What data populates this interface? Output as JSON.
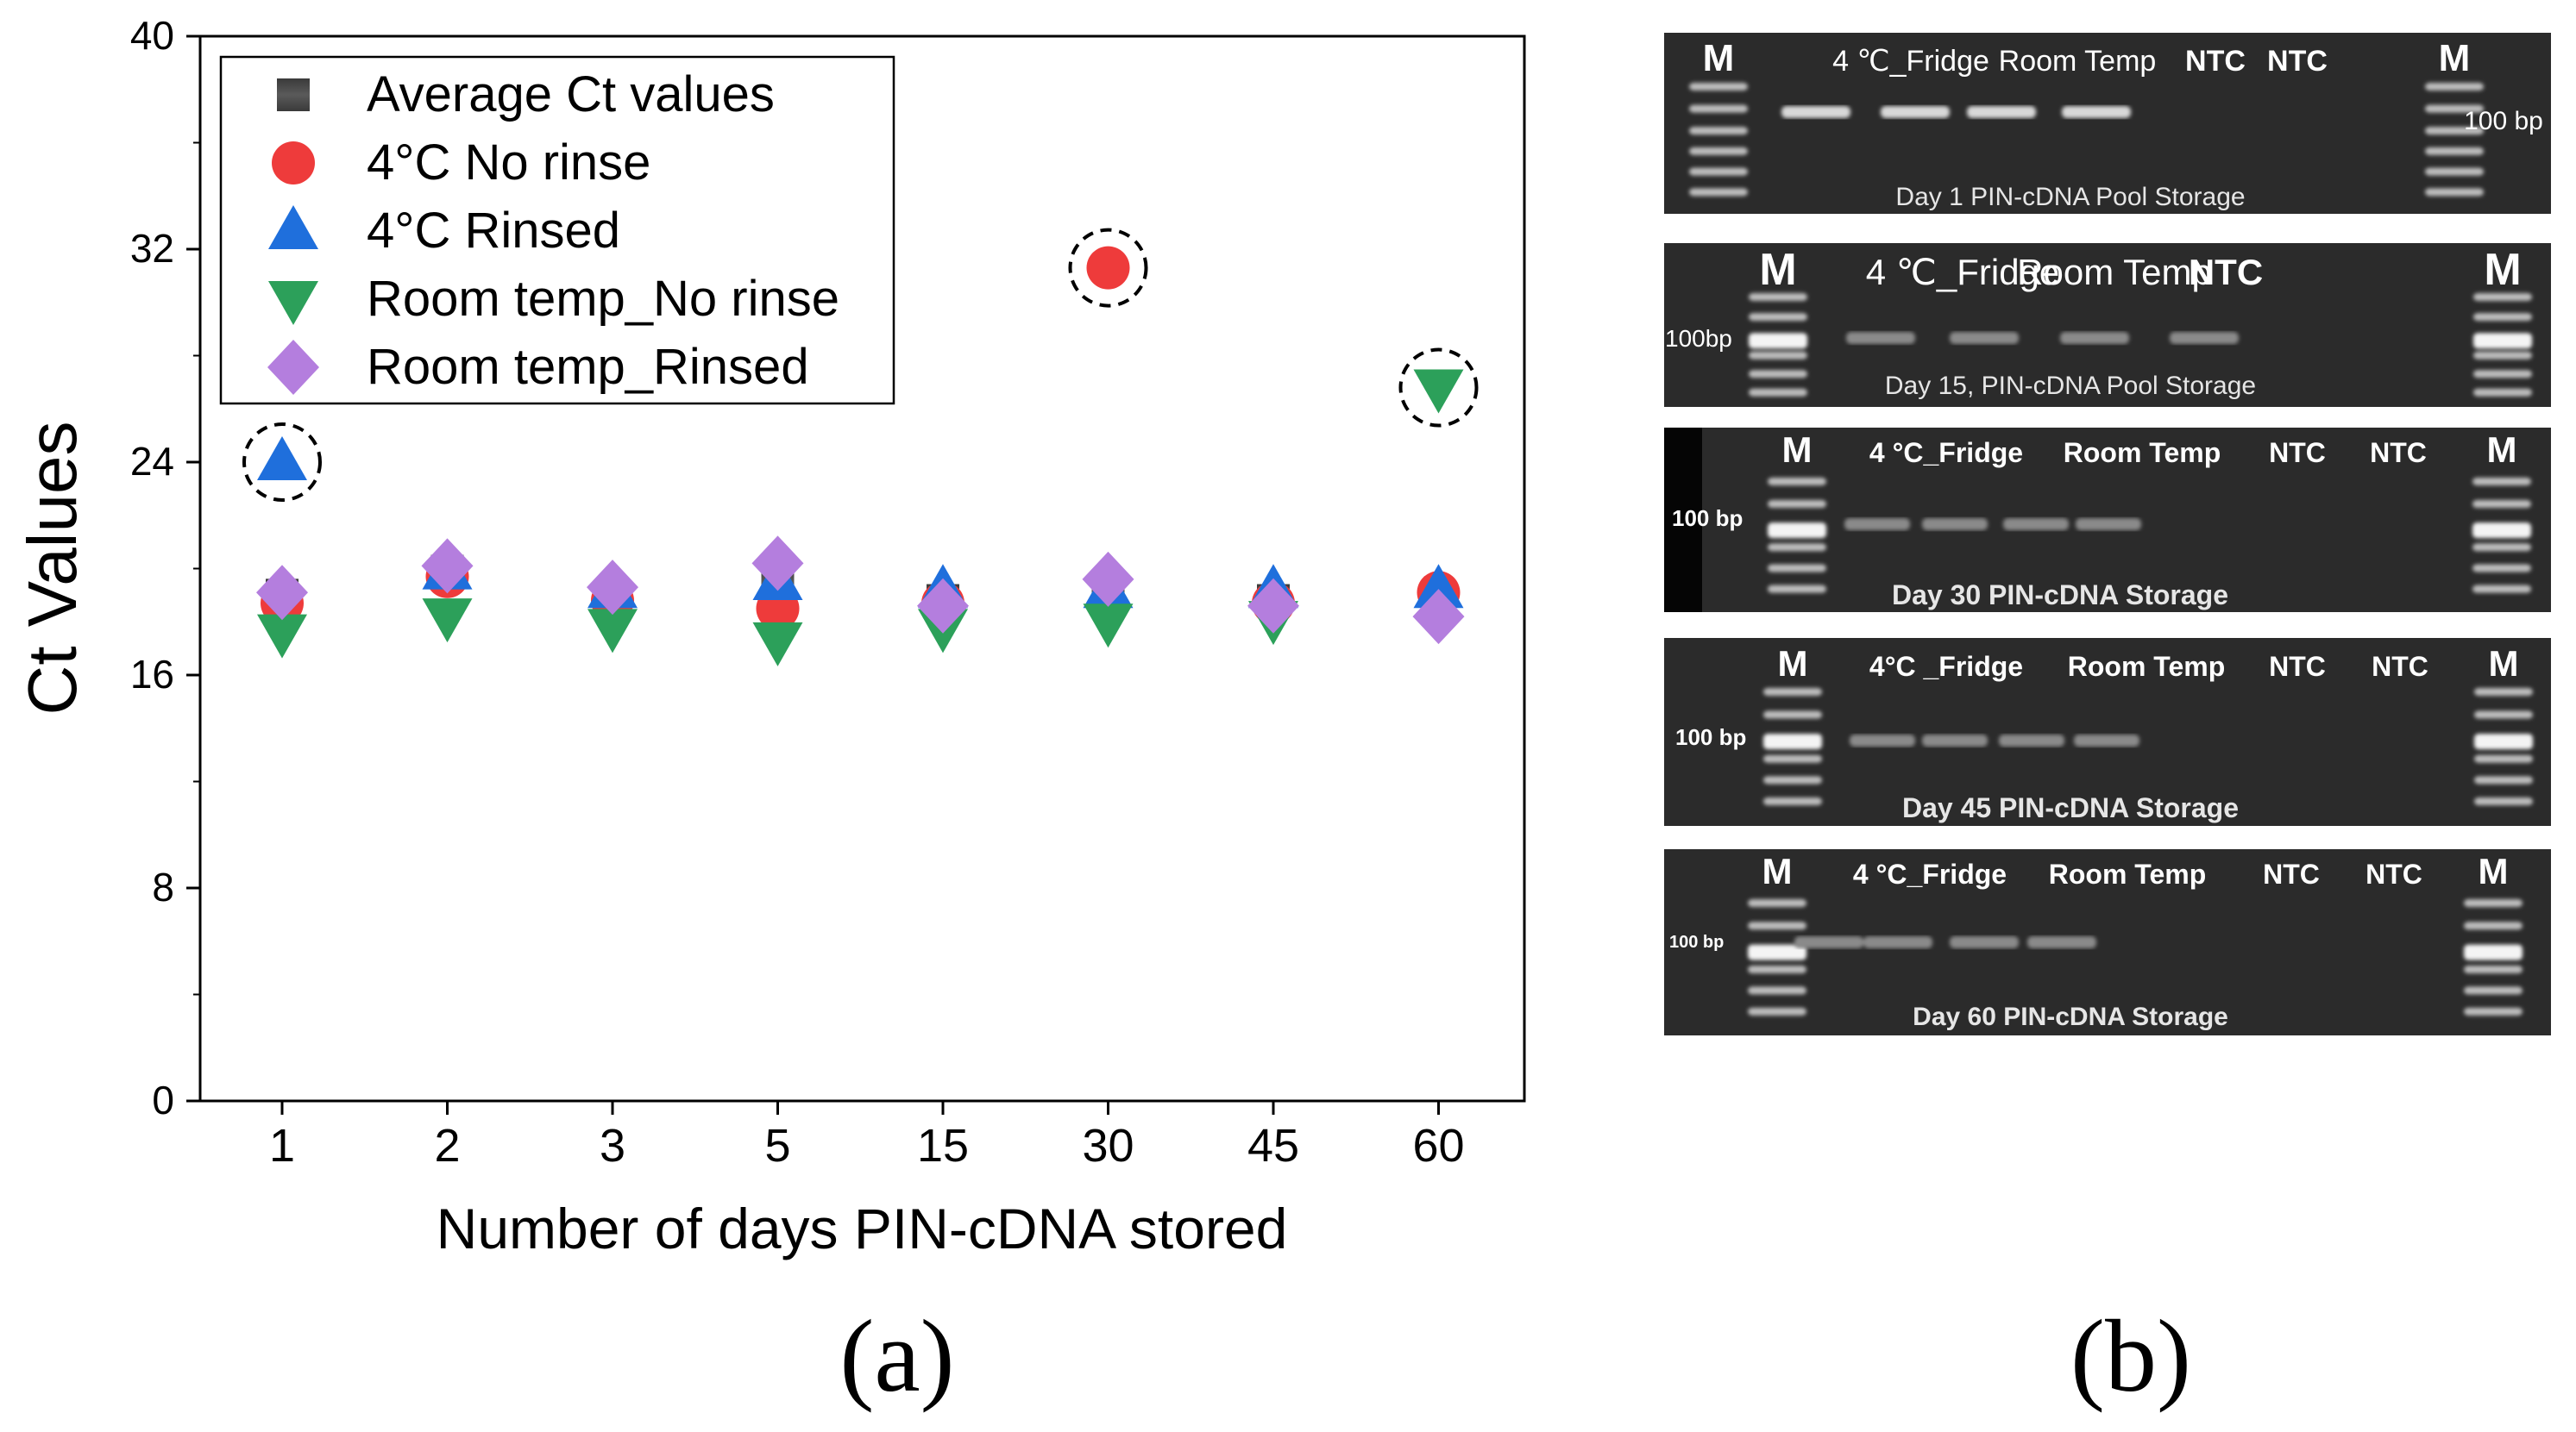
{
  "chart_data": {
    "type": "scatter",
    "title": "",
    "xlabel": "Number of days PIN-cDNA stored",
    "ylabel": "Ct Values",
    "categories": [
      "1",
      "2",
      "3",
      "5",
      "15",
      "30",
      "45",
      "60"
    ],
    "ylim": [
      0,
      40
    ],
    "yticks": [
      0,
      8,
      16,
      24,
      32,
      40
    ],
    "legend_position": "top-left",
    "series": [
      {
        "name": "Average Ct values",
        "marker": "square",
        "color": "#555555",
        "values": [
          19.0,
          19.9,
          19.0,
          19.5,
          18.8,
          19.3,
          18.8,
          18.9
        ]
      },
      {
        "name": "4°C No rinse",
        "marker": "circle",
        "color": "#ee3b3b",
        "values": [
          18.7,
          19.7,
          18.8,
          18.5,
          18.7,
          31.3,
          18.7,
          19.1
        ]
      },
      {
        "name": "4°C Rinsed",
        "marker": "triangle-up",
        "color": "#1f6fdc",
        "values": [
          24.0,
          19.9,
          19.2,
          19.5,
          19.2,
          19.2,
          19.2,
          19.2
        ]
      },
      {
        "name": "Room temp_No rinse",
        "marker": "triangle-down",
        "color": "#2ca05a",
        "values": [
          17.6,
          18.2,
          17.8,
          17.3,
          17.8,
          18.0,
          18.1,
          26.8
        ]
      },
      {
        "name": "Room temp_Rinsed",
        "marker": "diamond",
        "color": "#b47ede",
        "values": [
          19.1,
          20.1,
          19.3,
          20.2,
          18.6,
          19.6,
          18.6,
          18.2
        ]
      }
    ],
    "outliers": [
      {
        "series": "4°C Rinsed",
        "category": "1",
        "value": 24.0
      },
      {
        "series": "4°C No rinse",
        "category": "30",
        "value": 31.3
      },
      {
        "series": "Room temp_No rinse",
        "category": "60",
        "value": 26.8
      }
    ]
  },
  "panel_labels": {
    "a": "(a)",
    "b": "(b)"
  },
  "gels": [
    {
      "caption": "Day 1 PIN-cDNA Pool Storage",
      "labels": [
        "M",
        "4 ℃_Fridge",
        "Room Temp",
        "NTC",
        "NTC",
        "M"
      ],
      "size_marker": "100 bp"
    },
    {
      "caption": "Day 15, PIN-cDNA Pool Storage",
      "labels": [
        "M",
        "4 ℃_Fridge",
        "Room Temp",
        "NTC",
        "M"
      ],
      "size_marker": "100bp"
    },
    {
      "caption": "Day 30 PIN-cDNA Storage",
      "labels": [
        "M",
        "4 °C_Fridge",
        "Room Temp",
        "NTC",
        "NTC",
        "M"
      ],
      "size_marker": "100 bp"
    },
    {
      "caption": "Day 45 PIN-cDNA Storage",
      "labels": [
        "M",
        "4°C _Fridge",
        "Room Temp",
        "NTC",
        "NTC",
        "M"
      ],
      "size_marker": "100 bp"
    },
    {
      "caption": "Day 60 PIN-cDNA Storage",
      "labels": [
        "M",
        "4 °C_Fridge",
        "Room Temp",
        "NTC",
        "NTC",
        "M"
      ],
      "size_marker": "100 bp"
    }
  ]
}
